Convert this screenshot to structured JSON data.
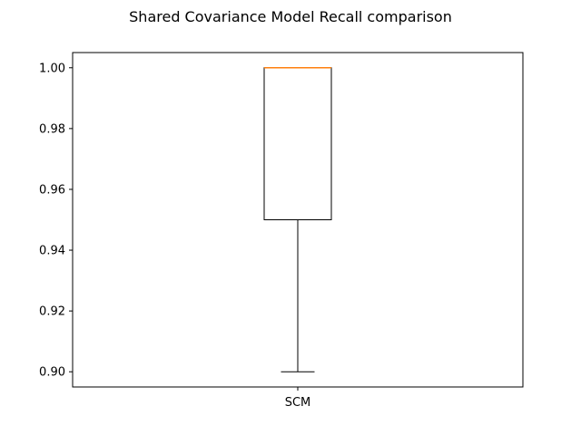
{
  "chart_data": {
    "type": "box",
    "title": "Shared Covariance Model Recall comparison",
    "xlabel": "",
    "ylabel": "",
    "categories": [
      "SCM"
    ],
    "boxes": [
      {
        "label": "SCM",
        "whisker_low": 0.9,
        "q1": 0.95,
        "median": 1.0,
        "q3": 1.0,
        "whisker_high": 1.0
      }
    ],
    "ylim": [
      0.895,
      1.005
    ],
    "yticks": [
      0.9,
      0.92,
      0.94,
      0.96,
      0.98,
      1.0
    ],
    "ytick_labels": [
      "0.90",
      "0.92",
      "0.94",
      "0.96",
      "0.98",
      "1.00"
    ],
    "grid": false,
    "colors": {
      "box": "#000000",
      "median": "#ff7f0e",
      "axes": "#000000",
      "background": "#ffffff"
    }
  }
}
